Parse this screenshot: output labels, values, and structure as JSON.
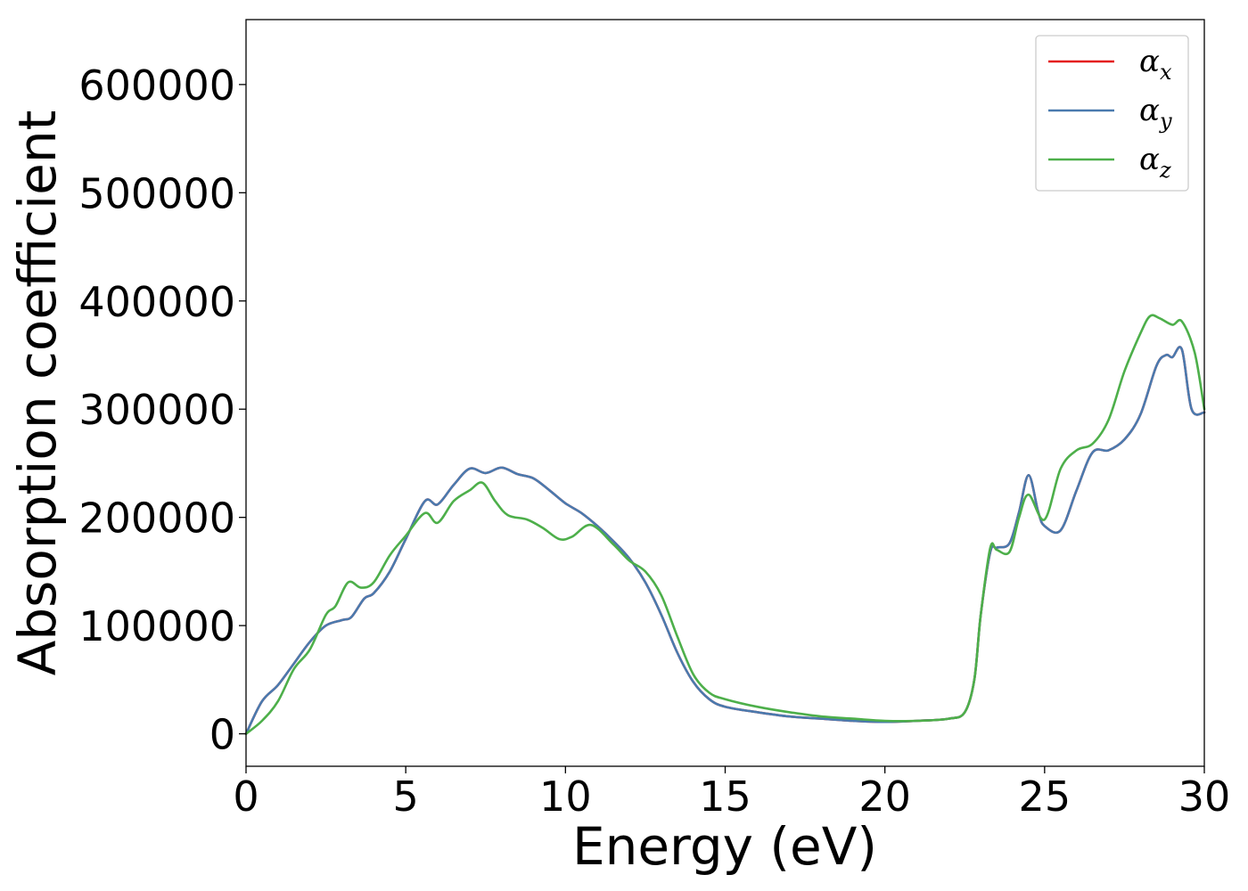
{
  "chart_data": {
    "type": "line",
    "title": "",
    "xlabel": "Energy (eV)",
    "ylabel": "Absorption coefficient",
    "xlim": [
      0,
      30
    ],
    "ylim": [
      -30000,
      660000
    ],
    "xticks": [
      0,
      5,
      10,
      15,
      20,
      25,
      30
    ],
    "yticks": [
      0,
      100000,
      200000,
      300000,
      400000,
      500000,
      600000
    ],
    "grid": false,
    "legend_position": "top-right",
    "series": [
      {
        "name": "α",
        "subscript": "x",
        "color": "#e41a1c",
        "x": [
          0,
          0.5,
          1,
          1.5,
          2,
          2.5,
          3,
          3.3,
          3.7,
          4,
          4.5,
          5,
          5.6,
          6,
          6.5,
          7,
          7.5,
          8,
          8.5,
          9,
          9.5,
          10,
          10.5,
          11,
          11.5,
          12,
          12.5,
          13,
          13.5,
          14,
          14.5,
          15,
          16,
          17,
          18,
          19,
          20,
          21,
          22,
          22.5,
          22.8,
          23,
          23.3,
          23.5,
          23.9,
          24.2,
          24.5,
          24.8,
          25,
          25.5,
          26,
          26.5,
          27,
          27.5,
          28,
          28.5,
          28.8,
          29,
          29.3,
          29.6,
          30
        ],
        "y": [
          0,
          30000,
          45000,
          65000,
          85000,
          100000,
          105000,
          108000,
          125000,
          130000,
          150000,
          180000,
          215000,
          212000,
          230000,
          245000,
          241000,
          246000,
          240000,
          236000,
          225000,
          213000,
          204000,
          192000,
          178000,
          162000,
          140000,
          110000,
          75000,
          48000,
          32000,
          25000,
          20000,
          16000,
          14000,
          12000,
          11000,
          12000,
          14000,
          20000,
          50000,
          110000,
          168000,
          172000,
          176000,
          205000,
          239000,
          205000,
          192000,
          188000,
          225000,
          260000,
          262000,
          272000,
          295000,
          340000,
          350000,
          348000,
          355000,
          300000,
          297000
        ]
      },
      {
        "name": "α",
        "subscript": "y",
        "color": "#4a7aae",
        "x": [
          0,
          0.5,
          1,
          1.5,
          2,
          2.5,
          3,
          3.3,
          3.7,
          4,
          4.5,
          5,
          5.6,
          6,
          6.5,
          7,
          7.5,
          8,
          8.5,
          9,
          9.5,
          10,
          10.5,
          11,
          11.5,
          12,
          12.5,
          13,
          13.5,
          14,
          14.5,
          15,
          16,
          17,
          18,
          19,
          20,
          21,
          22,
          22.5,
          22.8,
          23,
          23.3,
          23.5,
          23.9,
          24.2,
          24.5,
          24.8,
          25,
          25.5,
          26,
          26.5,
          27,
          27.5,
          28,
          28.5,
          28.8,
          29,
          29.3,
          29.6,
          30
        ],
        "y": [
          0,
          30000,
          45000,
          65000,
          85000,
          100000,
          105000,
          108000,
          125000,
          130000,
          150000,
          180000,
          215000,
          212000,
          230000,
          245000,
          241000,
          246000,
          240000,
          236000,
          225000,
          213000,
          204000,
          192000,
          178000,
          162000,
          140000,
          110000,
          75000,
          48000,
          32000,
          25000,
          20000,
          16000,
          14000,
          12000,
          11000,
          12000,
          14000,
          20000,
          50000,
          110000,
          168000,
          172000,
          176000,
          205000,
          239000,
          205000,
          192000,
          188000,
          225000,
          260000,
          262000,
          272000,
          295000,
          340000,
          350000,
          348000,
          355000,
          300000,
          297000
        ]
      },
      {
        "name": "α",
        "subscript": "z",
        "color": "#4daf4a",
        "x": [
          0,
          0.5,
          1,
          1.5,
          2,
          2.5,
          2.8,
          3.2,
          3.6,
          4,
          4.5,
          5,
          5.6,
          6,
          6.5,
          7,
          7.4,
          7.8,
          8.2,
          8.8,
          9.3,
          9.8,
          10.2,
          10.8,
          11.5,
          12,
          12.5,
          13,
          13.5,
          14,
          14.5,
          15,
          16,
          17,
          18,
          19,
          20,
          21,
          22,
          22.5,
          22.8,
          23,
          23.3,
          23.5,
          23.9,
          24.2,
          24.5,
          25,
          25.5,
          26,
          26.5,
          27,
          27.5,
          28,
          28.3,
          28.6,
          29,
          29.3,
          29.7,
          30
        ],
        "y": [
          0,
          12000,
          30000,
          60000,
          78000,
          110000,
          118000,
          140000,
          135000,
          140000,
          165000,
          183000,
          204000,
          195000,
          215000,
          225000,
          232000,
          215000,
          202000,
          198000,
          190000,
          180000,
          182000,
          193000,
          175000,
          160000,
          150000,
          128000,
          90000,
          55000,
          38000,
          32000,
          25000,
          20000,
          16000,
          14000,
          12000,
          12000,
          14000,
          20000,
          50000,
          110000,
          172000,
          170000,
          168000,
          200000,
          221000,
          198000,
          245000,
          262000,
          268000,
          290000,
          335000,
          370000,
          386000,
          384000,
          378000,
          381000,
          352000,
          300000
        ]
      }
    ]
  }
}
